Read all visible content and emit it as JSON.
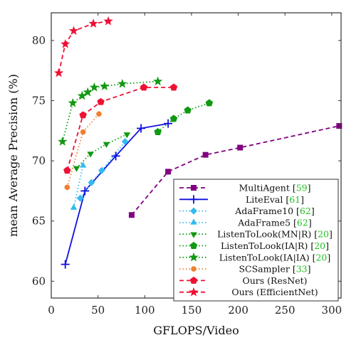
{
  "chart_data": {
    "type": "line",
    "xlabel": "GFLOPS/Video",
    "ylabel": "mean Average Precision (%)",
    "xlim": [
      0,
      310
    ],
    "ylim": [
      58.6,
      82.3
    ],
    "xticks": [
      0,
      50,
      100,
      150,
      200,
      250,
      300
    ],
    "yticks": [
      60,
      65,
      70,
      75,
      80
    ],
    "legend_position": "bottom-right",
    "grid": false,
    "series": [
      {
        "name": "MultiAgent",
        "ref": "59",
        "color": "#800080",
        "dash": "6,4",
        "marker": "square",
        "x": [
          86,
          125,
          165,
          202,
          308
        ],
        "y": [
          65.5,
          69.1,
          70.5,
          71.1,
          72.9
        ]
      },
      {
        "name": "LiteEval",
        "ref": "61",
        "color": "#1010e0",
        "dash": "",
        "marker": "plus",
        "x": [
          15,
          36,
          69,
          96,
          125
        ],
        "y": [
          61.4,
          67.5,
          70.4,
          72.7,
          73.1
        ]
      },
      {
        "name": "AdaFrame10",
        "ref": "62",
        "color": "#33bbee",
        "dash": "1.5,3",
        "marker": "diamond",
        "x": [
          31,
          43,
          54,
          79
        ],
        "y": [
          66.9,
          68.2,
          69.2,
          71.6
        ]
      },
      {
        "name": "AdaFrame5",
        "ref": "62",
        "color": "#33bbee",
        "dash": "1.5,3",
        "marker": "triangle-up",
        "x": [
          24,
          34
        ],
        "y": [
          66.1,
          69.6
        ]
      },
      {
        "name": "ListenToLook(MN|R)",
        "ref": "20",
        "color": "#119911",
        "dash": "1.5,3",
        "marker": "triangle-down",
        "x": [
          27,
          42,
          59,
          81
        ],
        "y": [
          69.4,
          70.6,
          71.4,
          72.2
        ]
      },
      {
        "name": "ListenToLook(IA|R)",
        "ref": "20",
        "color": "#119911",
        "dash": "1.5,3",
        "marker": "pentagon",
        "x": [
          114,
          131,
          146,
          169
        ],
        "y": [
          72.4,
          73.5,
          74.2,
          74.8
        ]
      },
      {
        "name": "ListenToLook(IA|IA)",
        "ref": "20",
        "color": "#119911",
        "dash": "1.5,3",
        "marker": "star",
        "x": [
          12,
          23,
          33,
          39,
          46,
          57,
          76,
          114
        ],
        "y": [
          71.6,
          74.8,
          75.4,
          75.7,
          76.1,
          76.2,
          76.4,
          76.6
        ]
      },
      {
        "name": "SCSampler",
        "ref": "33",
        "color": "#f08030",
        "dash": "1.5,3",
        "marker": "circle",
        "x": [
          17,
          34,
          51
        ],
        "y": [
          67.8,
          72.4,
          73.9
        ]
      },
      {
        "name": "Ours (ResNet)",
        "ref": "",
        "color": "#ee1133",
        "dash": "6,4",
        "marker": "pentagon",
        "x": [
          17,
          34,
          53,
          99,
          131
        ],
        "y": [
          69.2,
          73.8,
          74.9,
          76.1,
          76.1
        ]
      },
      {
        "name": "Ours (EfficientNet)",
        "ref": "",
        "color": "#ee1133",
        "dash": "6,4",
        "marker": "star",
        "x": [
          8,
          15,
          24,
          45,
          61
        ],
        "y": [
          77.3,
          79.7,
          80.8,
          81.4,
          81.6
        ]
      }
    ]
  }
}
